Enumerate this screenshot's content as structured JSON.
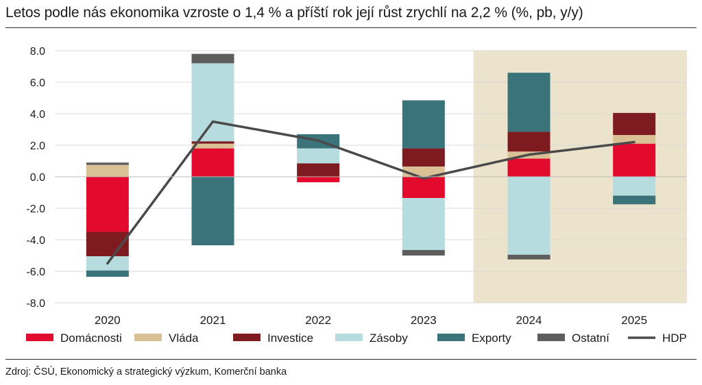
{
  "title": "Letos podle nás ekonomika vzroste o 1,4 % a příští rok její růst zrychlí na 2,2 % (%, pb, y/y)",
  "source": "Zdroj: ČSÚ, Ekonomický a strategický výzkum, Komerční banka",
  "chart_data": {
    "type": "bar",
    "stacked": true,
    "title": "Letos podle nás ekonomika vzroste o 1,4 % a příští rok její růst zrychlí na 2,2 % (%, pb, y/y)",
    "xlabel": "",
    "ylabel": "",
    "ylim": [
      -8,
      8
    ],
    "yticks": [
      -8,
      -6,
      -4,
      -2,
      0,
      2,
      4,
      6,
      8
    ],
    "ytick_labels": [
      "-8.0",
      "-6.0",
      "-4.0",
      "-2.0",
      "0.0",
      "2.0",
      "4.0",
      "6.0",
      "8.0"
    ],
    "grid": "horizontal",
    "legend_position": "bottom",
    "forecast_shading": {
      "from": "2024",
      "to": "2025",
      "color": "#ece3cc"
    },
    "categories": [
      "2020",
      "2021",
      "2022",
      "2023",
      "2024",
      "2025"
    ],
    "series": [
      {
        "name": "Domácnosti",
        "kind": "bar",
        "color": "#e30b2d",
        "values": [
          -3.5,
          1.8,
          -0.35,
          -1.35,
          1.15,
          2.1
        ]
      },
      {
        "name": "Vláda",
        "kind": "bar",
        "color": "#d9c195",
        "values": [
          0.75,
          0.3,
          0.0,
          0.65,
          0.45,
          0.55
        ]
      },
      {
        "name": "Investice",
        "kind": "bar",
        "color": "#7e1b21",
        "values": [
          -1.55,
          0.15,
          0.85,
          1.15,
          1.25,
          1.4
        ]
      },
      {
        "name": "Zásoby",
        "kind": "bar",
        "color": "#b7dce0",
        "values": [
          -0.9,
          4.95,
          0.95,
          -3.3,
          -4.95,
          -1.2
        ]
      },
      {
        "name": "Exporty",
        "kind": "bar",
        "color": "#3a7379",
        "values": [
          -0.4,
          -4.35,
          0.9,
          3.05,
          3.75,
          -0.55
        ]
      },
      {
        "name": "Ostatní",
        "kind": "bar",
        "color": "#5d5d5d",
        "values": [
          0.15,
          0.6,
          0.0,
          -0.35,
          -0.3,
          0.0
        ]
      },
      {
        "name": "HDP",
        "kind": "line",
        "color": "#4a4a4a",
        "values": [
          -5.5,
          3.5,
          2.3,
          -0.1,
          1.4,
          2.2
        ]
      }
    ]
  }
}
